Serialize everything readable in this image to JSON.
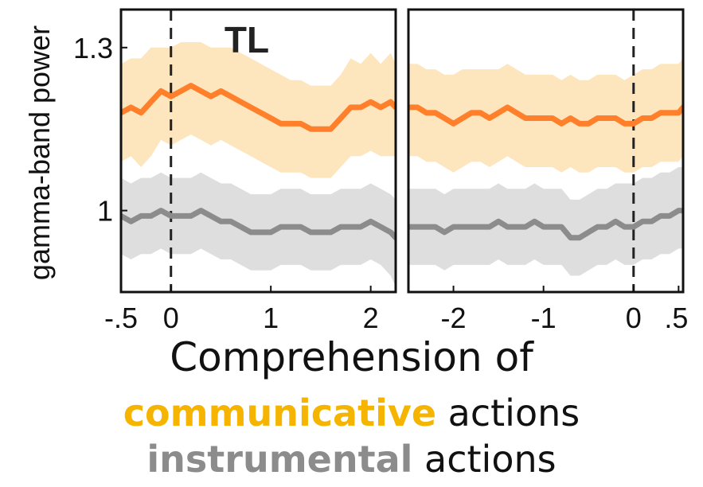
{
  "chart_data": {
    "type": "line",
    "ylabel": "gamma-band power",
    "y_ticks": [
      "1",
      "1.3"
    ],
    "ylim": [
      0.85,
      1.37
    ],
    "colors": {
      "communicative": "#ff7f2a",
      "communicative_band": "#fde5bd",
      "instrumental": "#8c8c8c",
      "instrumental_band": "#dedede"
    },
    "panels": [
      {
        "title": "TL",
        "xlim": [
          -0.5,
          2.25
        ],
        "x_ticks": [
          -0.5,
          0,
          1,
          2
        ],
        "x_tick_labels": [
          "-.5",
          "0",
          "1",
          "2"
        ],
        "dashed_line_x": 0,
        "series": [
          {
            "key": "communicative",
            "x": [
              -0.5,
              -0.4,
              -0.3,
              -0.2,
              -0.1,
              0,
              0.1,
              0.2,
              0.3,
              0.4,
              0.5,
              0.6,
              0.7,
              0.8,
              0.9,
              1.0,
              1.1,
              1.2,
              1.3,
              1.4,
              1.5,
              1.6,
              1.7,
              1.8,
              1.9,
              2.0,
              2.1,
              2.2,
              2.25
            ],
            "y": [
              1.18,
              1.19,
              1.18,
              1.2,
              1.22,
              1.21,
              1.22,
              1.23,
              1.22,
              1.21,
              1.22,
              1.21,
              1.2,
              1.19,
              1.18,
              1.17,
              1.16,
              1.16,
              1.16,
              1.15,
              1.15,
              1.15,
              1.17,
              1.19,
              1.19,
              1.2,
              1.19,
              1.2,
              1.19
            ],
            "upper": [
              1.27,
              1.28,
              1.28,
              1.3,
              1.3,
              1.3,
              1.31,
              1.31,
              1.31,
              1.3,
              1.3,
              1.3,
              1.29,
              1.28,
              1.27,
              1.26,
              1.25,
              1.24,
              1.24,
              1.23,
              1.23,
              1.23,
              1.25,
              1.28,
              1.27,
              1.29,
              1.27,
              1.29,
              1.27
            ],
            "lower": [
              1.09,
              1.1,
              1.08,
              1.1,
              1.13,
              1.12,
              1.13,
              1.14,
              1.13,
              1.12,
              1.13,
              1.12,
              1.11,
              1.1,
              1.09,
              1.08,
              1.07,
              1.07,
              1.07,
              1.06,
              1.06,
              1.06,
              1.08,
              1.1,
              1.1,
              1.11,
              1.1,
              1.1,
              1.1
            ]
          },
          {
            "key": "instrumental",
            "x": [
              -0.5,
              -0.4,
              -0.3,
              -0.2,
              -0.1,
              0,
              0.1,
              0.2,
              0.3,
              0.4,
              0.5,
              0.6,
              0.7,
              0.8,
              0.9,
              1.0,
              1.1,
              1.2,
              1.3,
              1.4,
              1.5,
              1.6,
              1.7,
              1.8,
              1.9,
              2.0,
              2.1,
              2.2,
              2.25
            ],
            "y": [
              0.99,
              0.98,
              0.99,
              0.99,
              1.0,
              0.99,
              0.99,
              0.99,
              1.0,
              0.99,
              0.98,
              0.98,
              0.97,
              0.96,
              0.96,
              0.96,
              0.97,
              0.97,
              0.97,
              0.96,
              0.96,
              0.96,
              0.97,
              0.97,
              0.97,
              0.98,
              0.97,
              0.96,
              0.95
            ],
            "upper": [
              1.06,
              1.05,
              1.06,
              1.06,
              1.07,
              1.06,
              1.06,
              1.06,
              1.07,
              1.06,
              1.05,
              1.05,
              1.04,
              1.03,
              1.03,
              1.03,
              1.04,
              1.04,
              1.04,
              1.03,
              1.03,
              1.03,
              1.04,
              1.04,
              1.04,
              1.05,
              1.04,
              1.03,
              1.02
            ],
            "lower": [
              0.92,
              0.91,
              0.92,
              0.92,
              0.93,
              0.92,
              0.92,
              0.92,
              0.93,
              0.92,
              0.91,
              0.91,
              0.9,
              0.89,
              0.89,
              0.89,
              0.9,
              0.9,
              0.9,
              0.89,
              0.89,
              0.89,
              0.9,
              0.9,
              0.9,
              0.91,
              0.9,
              0.88,
              0.86
            ]
          }
        ]
      },
      {
        "title": "",
        "xlim": [
          -2.5,
          0.55
        ],
        "x_ticks": [
          -2,
          -1,
          0,
          0.5
        ],
        "x_tick_labels": [
          "-2",
          "-1",
          "0",
          ".5"
        ],
        "dashed_line_x": 0,
        "series": [
          {
            "key": "communicative",
            "x": [
              -2.5,
              -2.4,
              -2.3,
              -2.2,
              -2.1,
              -2.0,
              -1.9,
              -1.8,
              -1.7,
              -1.6,
              -1.5,
              -1.4,
              -1.3,
              -1.2,
              -1.1,
              -1.0,
              -0.9,
              -0.8,
              -0.7,
              -0.6,
              -0.5,
              -0.4,
              -0.3,
              -0.2,
              -0.1,
              0,
              0.1,
              0.2,
              0.3,
              0.4,
              0.5,
              0.55
            ],
            "y": [
              1.19,
              1.19,
              1.18,
              1.18,
              1.17,
              1.16,
              1.17,
              1.18,
              1.18,
              1.17,
              1.18,
              1.19,
              1.18,
              1.17,
              1.17,
              1.17,
              1.17,
              1.16,
              1.17,
              1.16,
              1.16,
              1.17,
              1.17,
              1.17,
              1.16,
              1.16,
              1.17,
              1.17,
              1.18,
              1.18,
              1.18,
              1.19
            ],
            "upper": [
              1.27,
              1.27,
              1.26,
              1.26,
              1.25,
              1.25,
              1.26,
              1.26,
              1.26,
              1.26,
              1.26,
              1.27,
              1.26,
              1.25,
              1.25,
              1.25,
              1.25,
              1.24,
              1.25,
              1.24,
              1.24,
              1.25,
              1.25,
              1.25,
              1.24,
              1.25,
              1.26,
              1.26,
              1.27,
              1.27,
              1.27,
              1.28
            ],
            "lower": [
              1.1,
              1.1,
              1.09,
              1.09,
              1.08,
              1.07,
              1.08,
              1.09,
              1.09,
              1.08,
              1.09,
              1.1,
              1.09,
              1.08,
              1.08,
              1.08,
              1.08,
              1.07,
              1.08,
              1.07,
              1.07,
              1.08,
              1.08,
              1.08,
              1.07,
              1.07,
              1.08,
              1.08,
              1.09,
              1.09,
              1.09,
              1.1
            ]
          },
          {
            "key": "instrumental",
            "x": [
              -2.5,
              -2.4,
              -2.3,
              -2.2,
              -2.1,
              -2.0,
              -1.9,
              -1.8,
              -1.7,
              -1.6,
              -1.5,
              -1.4,
              -1.3,
              -1.2,
              -1.1,
              -1.0,
              -0.9,
              -0.8,
              -0.7,
              -0.6,
              -0.5,
              -0.4,
              -0.3,
              -0.2,
              -0.1,
              0,
              0.1,
              0.2,
              0.3,
              0.4,
              0.5,
              0.55
            ],
            "y": [
              0.97,
              0.97,
              0.97,
              0.97,
              0.96,
              0.97,
              0.97,
              0.97,
              0.97,
              0.97,
              0.98,
              0.97,
              0.97,
              0.97,
              0.98,
              0.97,
              0.97,
              0.97,
              0.95,
              0.95,
              0.96,
              0.97,
              0.97,
              0.98,
              0.97,
              0.97,
              0.98,
              0.98,
              0.99,
              0.99,
              1.0,
              1.0
            ],
            "upper": [
              1.04,
              1.04,
              1.04,
              1.04,
              1.03,
              1.04,
              1.04,
              1.04,
              1.04,
              1.04,
              1.05,
              1.04,
              1.04,
              1.04,
              1.05,
              1.04,
              1.04,
              1.04,
              1.02,
              1.02,
              1.03,
              1.04,
              1.04,
              1.05,
              1.05,
              1.05,
              1.06,
              1.06,
              1.07,
              1.07,
              1.08,
              1.08
            ],
            "lower": [
              0.9,
              0.9,
              0.9,
              0.9,
              0.89,
              0.9,
              0.9,
              0.9,
              0.9,
              0.9,
              0.91,
              0.9,
              0.9,
              0.9,
              0.91,
              0.9,
              0.9,
              0.9,
              0.88,
              0.88,
              0.89,
              0.9,
              0.9,
              0.91,
              0.9,
              0.9,
              0.91,
              0.91,
              0.92,
              0.92,
              0.93,
              0.93
            ]
          }
        ]
      }
    ]
  },
  "caption": {
    "line1": "Comprehension of",
    "line2_highlight": "communicative",
    "line2_rest": " actions",
    "line3_highlight": "instrumental",
    "line3_rest": " actions"
  }
}
